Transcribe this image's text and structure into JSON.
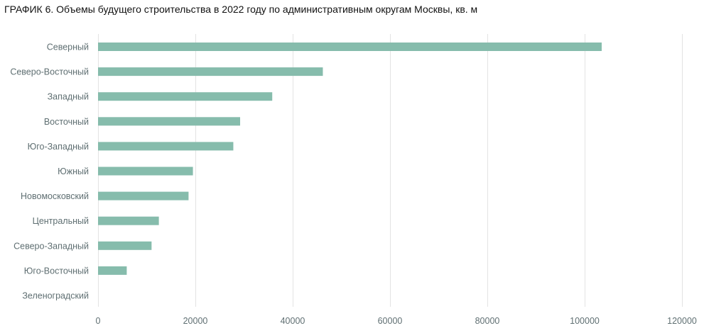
{
  "chart_data": {
    "type": "bar",
    "orientation": "horizontal",
    "title": "ГРАФИК 6. Объемы будущего строительства в 2022 году по административным округам Москвы, кв. м",
    "categories": [
      "Северный",
      "Северо-Восточный",
      "Западный",
      "Восточный",
      "Юго-Западный",
      "Южный",
      "Новомосковский",
      "Центральный",
      "Северо-Западный",
      "Юго-Восточный",
      "Зеленоградский"
    ],
    "values": [
      103500,
      46200,
      35800,
      29200,
      27800,
      19500,
      18600,
      12500,
      11000,
      5900,
      0
    ],
    "xlim": [
      0,
      120000
    ],
    "xticks": [
      0,
      20000,
      40000,
      60000,
      80000,
      100000,
      120000
    ],
    "grid": true,
    "legend": "none",
    "bar_color": "#86bcac"
  }
}
